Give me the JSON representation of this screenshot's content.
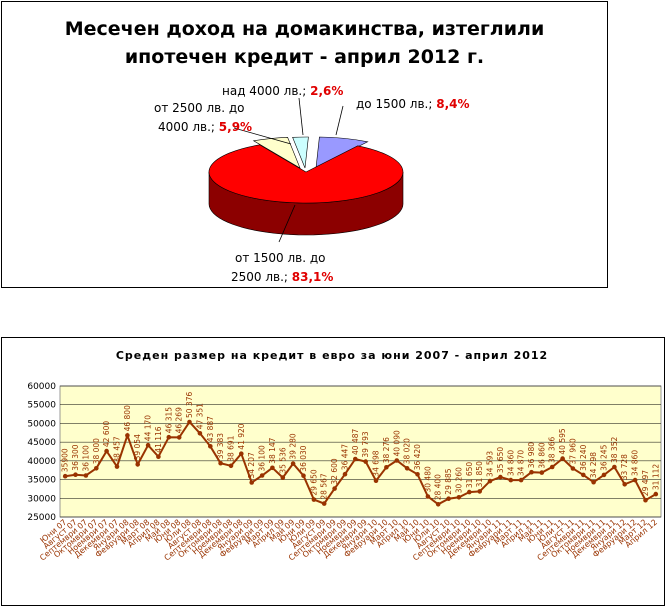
{
  "pie_chart": {
    "title_line1": "Месечен доход на домакинства, изтеглили",
    "title_line2": "ипотечен кредит - април 2012 г.",
    "slices": [
      {
        "label": "до 1500 лв.;",
        "pct": "8,4%",
        "value": 8.4,
        "color": "#9999ff"
      },
      {
        "label_line1": "от 1500 лв. до",
        "label_line2": "2500 лв.;",
        "pct": "83,1%",
        "value": 83.1,
        "color": "#ff0000"
      },
      {
        "label_line1": "от 2500 лв. до",
        "label_line2": "4000 лв.;",
        "pct": "5,9%",
        "value": 5.9,
        "color": "#ffffcc"
      },
      {
        "label": "над 4000 лв.;",
        "pct": "2,6%",
        "value": 2.6,
        "color": "#ccffff"
      }
    ]
  },
  "chart_data": [
    {
      "type": "pie",
      "title": "Месечен доход на домакинства, изтеглили ипотечен кредит - април 2012 г.",
      "categories": [
        "до 1500 лв.",
        "от 1500 лв. до 2500 лв.",
        "от 2500 лв. до 4000 лв.",
        "над 4000 лв."
      ],
      "values": [
        8.4,
        83.1,
        5.9,
        2.6
      ]
    },
    {
      "type": "line",
      "title": "Среден размер на кредит в евро за юни 2007 - април 2012",
      "ylim": [
        25000,
        60000
      ],
      "yticks": [
        "25000",
        "30000",
        "35000",
        "40000",
        "45000",
        "50000",
        "55000",
        "60000"
      ],
      "x": [
        "Юни 07",
        "Август 07",
        "Септември 07",
        "Октомври 07",
        "Ноември 07",
        "Декември 07",
        "Януари 08",
        "Февруари 08",
        "Март 08",
        "Април 08",
        "Май 08",
        "Юни 08",
        "Юли 08",
        "Август 08",
        "Септември 08",
        "Октомври 08",
        "Ноември 08",
        "Декември 08",
        "Януари 09",
        "Февруари 09",
        "Март 09",
        "Април 09",
        "Май 09",
        "Юни 09",
        "Юли 09",
        "Август 09",
        "Септември 09",
        "Октомври 09",
        "Ноември 09",
        "Декември 09",
        "Януари 10",
        "Февруари 10",
        "Март 10",
        "Април 10",
        "Май 10",
        "Юни 10",
        "Юли 10",
        "Август 10",
        "Септември 10",
        "Октомври 10",
        "Ноември 10",
        "Декември 10",
        "Януари 11",
        "Февруари 11",
        "Март 11",
        "Април 11",
        "Май 11",
        "Юни 11",
        "Юли 11",
        "Август 11",
        "Септември 11",
        "Октомври 11",
        "Ноември 11",
        "Декември 11",
        "Януари 12",
        "Февруари 12",
        "Март 12",
        "Април 12"
      ],
      "values": [
        35900,
        36300,
        36100,
        38000,
        42600,
        38457,
        46800,
        39054,
        44170,
        41116,
        46315,
        46269,
        50376,
        47351,
        43887,
        39383,
        38691,
        41920,
        34207,
        36100,
        38147,
        35536,
        39280,
        36030,
        29650,
        28567,
        32600,
        36447,
        40487,
        39793,
        34698,
        38276,
        40090,
        38020,
        36420,
        30480,
        28400,
        29885,
        30260,
        31650,
        31850,
        34593,
        35650,
        34860,
        34870,
        36980,
        36860,
        38366,
        40595,
        37960,
        36240,
        34298,
        36245,
        38352,
        33728,
        34860,
        29497,
        31112
      ],
      "labels": [
        "35900",
        "36 300",
        "36 100",
        "38 000",
        "42 600",
        "38 457",
        "46 800",
        "39 054",
        "44 170",
        "41 116",
        "46 315",
        "46 269",
        "50 376",
        "47 351",
        "43 887",
        "39 383",
        "38 691",
        "41 920",
        "34 207",
        "36 100",
        "38 147",
        "35 536",
        "39 280",
        "36 030",
        "29 650",
        "28 567",
        "32 600",
        "36 447",
        "40 487",
        "39 793",
        "34 698",
        "38 276",
        "40 090",
        "38 020",
        "36 420",
        "30 480",
        "28 400",
        "29 885",
        "30 260",
        "31 650",
        "31 850",
        "34 593",
        "35 650",
        "34 860",
        "34 870",
        "36 980",
        "36 860",
        "38 366",
        "40 595",
        "37 960",
        "36 240",
        "34 298",
        "36 245",
        "38 352",
        "33 728",
        "34 860",
        "29 497",
        "31 112"
      ],
      "grid": true,
      "line_color": "#993300",
      "plot_background": "#ffffcc"
    }
  ],
  "line_chart": {
    "title": "Среден размер на кредит в евро за юни 2007 - април 2012"
  }
}
